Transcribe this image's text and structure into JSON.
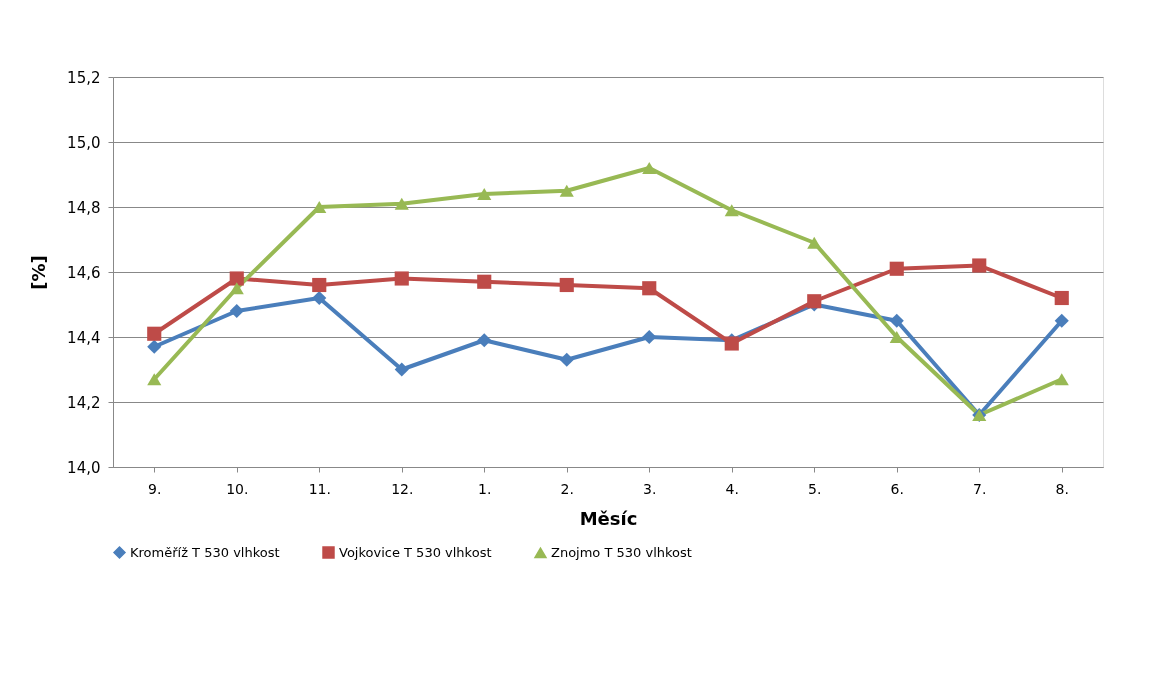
{
  "chart_data": {
    "type": "line",
    "xlabel": "Měsíc",
    "ylabel": "[%]",
    "categories": [
      "9.",
      "10.",
      "11.",
      "12.",
      "1.",
      "2.",
      "3.",
      "4.",
      "5.",
      "6.",
      "7.",
      "8."
    ],
    "series": [
      {
        "name": "Kroměříž T 530 vlhkost",
        "color": "#4a7ebb",
        "marker": "diamond",
        "values": [
          14.37,
          14.48,
          14.52,
          14.3,
          14.39,
          14.33,
          14.4,
          14.39,
          14.5,
          14.45,
          14.16,
          14.45
        ]
      },
      {
        "name": "Vojkovice T 530 vlhkost",
        "color": "#be4b48",
        "marker": "square",
        "values": [
          14.41,
          14.58,
          14.56,
          14.58,
          14.57,
          14.56,
          14.55,
          14.38,
          14.51,
          14.61,
          14.62,
          14.52
        ]
      },
      {
        "name": "Znojmo T 530 vlhkost",
        "color": "#98b954",
        "marker": "triangle",
        "values": [
          14.27,
          14.55,
          14.8,
          14.81,
          14.84,
          14.85,
          14.92,
          14.79,
          14.69,
          14.4,
          14.16,
          14.27
        ]
      }
    ],
    "ylim": [
      14.0,
      15.2
    ],
    "yticks": [
      {
        "value": 14.0,
        "label": "14,0"
      },
      {
        "value": 14.2,
        "label": "14,2"
      },
      {
        "value": 14.4,
        "label": "14,4"
      },
      {
        "value": 14.6,
        "label": "14,6"
      },
      {
        "value": 14.8,
        "label": "14,8"
      },
      {
        "value": 15.0,
        "label": "15,0"
      },
      {
        "value": 15.2,
        "label": "15,2"
      }
    ],
    "grid": "y",
    "legend": "bottom",
    "line_style": "solid"
  }
}
